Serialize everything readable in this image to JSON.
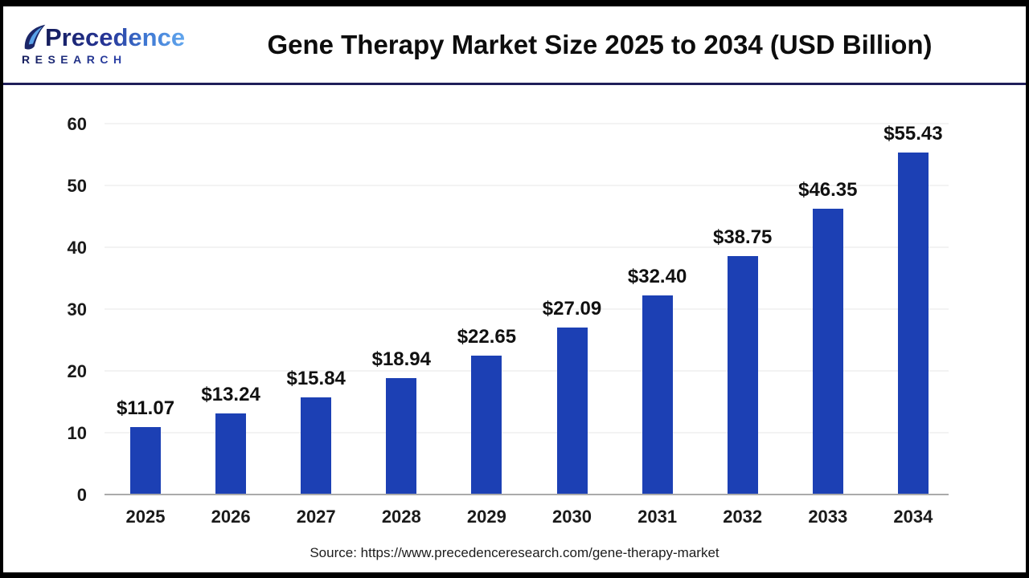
{
  "header": {
    "logo": {
      "brand": "Precedence",
      "sub": "RESEARCH"
    },
    "title": "Gene Therapy Market Size 2025 to 2034 (USD Billion)"
  },
  "chart_data": {
    "type": "bar",
    "title": "Gene Therapy Market Size 2025 to 2034 (USD Billion)",
    "categories": [
      "2025",
      "2026",
      "2027",
      "2028",
      "2029",
      "2030",
      "2031",
      "2032",
      "2033",
      "2034"
    ],
    "values": [
      11.07,
      13.24,
      15.84,
      18.94,
      22.65,
      27.09,
      32.4,
      38.75,
      46.35,
      55.43
    ],
    "value_labels": [
      "$11.07",
      "$13.24",
      "$15.84",
      "$18.94",
      "$22.65",
      "$27.09",
      "$32.40",
      "$38.75",
      "$46.35",
      "$55.43"
    ],
    "unit": "USD Billion",
    "ylim": [
      0,
      60
    ],
    "y_ticks": [
      0,
      10,
      20,
      30,
      40,
      50,
      60
    ],
    "grid": true,
    "legend": "none",
    "bar_color": "#1C40B4"
  },
  "footer": {
    "source": "Source: https://www.precedenceresearch.com/gene-therapy-market"
  },
  "colors": {
    "frame": "#000000",
    "separator": "#201f5a",
    "brand_navy": "#141c5a",
    "brand_blue": "#62a7ee",
    "axis_line": "#ababab",
    "gridline": "#f3f3f3",
    "text": "#111111"
  }
}
